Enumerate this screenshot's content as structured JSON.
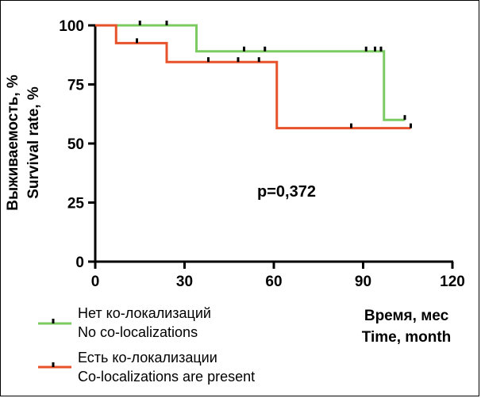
{
  "chart_data": {
    "type": "line",
    "subtype": "kaplan-meier-step",
    "ylabel_ru": "Выживаемость, %",
    "ylabel_en": "Survival rate, %",
    "xlabel_ru": "Время, мес",
    "xlabel_en": "Time, month",
    "xlim": [
      0,
      120
    ],
    "ylim": [
      0,
      100
    ],
    "xticks": [
      0,
      30,
      60,
      90,
      120
    ],
    "yticks": [
      0,
      25,
      50,
      75,
      100
    ],
    "annotation": "p=0,372",
    "grid": false,
    "legend_position": "bottom-left",
    "series": [
      {
        "name_ru": "Нет ко-локализаций",
        "name_en": "No co-localizations",
        "color": "#7ccb62",
        "steps": [
          [
            0,
            100
          ],
          [
            34,
            100
          ],
          [
            34,
            89
          ],
          [
            97,
            89
          ],
          [
            97,
            60
          ],
          [
            104,
            60
          ]
        ],
        "censored": [
          [
            15,
            100
          ],
          [
            24,
            100
          ],
          [
            50,
            89
          ],
          [
            57,
            89
          ],
          [
            91,
            89
          ],
          [
            94,
            89
          ],
          [
            96,
            89
          ],
          [
            104,
            60
          ]
        ]
      },
      {
        "name_ru": "Есть ко-локализации",
        "name_en": "Co-localizations are present",
        "color": "#e8522a",
        "steps": [
          [
            0,
            100
          ],
          [
            7,
            100
          ],
          [
            7,
            92.5
          ],
          [
            24,
            92.5
          ],
          [
            24,
            84.5
          ],
          [
            61,
            84.5
          ],
          [
            61,
            56.5
          ],
          [
            106,
            56.5
          ]
        ],
        "censored": [
          [
            14,
            92.5
          ],
          [
            38,
            84.5
          ],
          [
            48,
            84.5
          ],
          [
            55,
            84.5
          ],
          [
            86,
            56.5
          ],
          [
            106,
            56.5
          ]
        ]
      }
    ]
  }
}
